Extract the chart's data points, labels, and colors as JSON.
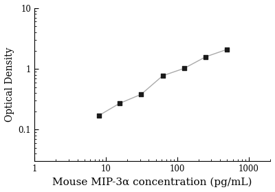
{
  "x": [
    8,
    15.6,
    31.25,
    62.5,
    125,
    250,
    500
  ],
  "y": [
    0.17,
    0.27,
    0.38,
    0.77,
    1.02,
    1.58,
    2.1
  ],
  "xlabel": "Mouse MIP-3α concentration (pg/mL)",
  "ylabel": "Optical Density",
  "xlim": [
    1,
    2000
  ],
  "ylim": [
    0.03,
    10
  ],
  "marker": "s",
  "marker_color": "#1a1a1a",
  "marker_size": 5,
  "line_color": "#aaaaaa",
  "line_style": "-",
  "line_width": 1.0,
  "background_color": "#ffffff",
  "xlabel_fontsize": 11,
  "ylabel_fontsize": 10,
  "tick_fontsize": 8.5,
  "ytick_labels": [
    "0.1",
    "1",
    "10"
  ],
  "ytick_values": [
    0.1,
    1,
    10
  ],
  "xtick_labels": [
    "1",
    "10",
    "100",
    "1000"
  ],
  "xtick_values": [
    1,
    10,
    100,
    1000
  ]
}
